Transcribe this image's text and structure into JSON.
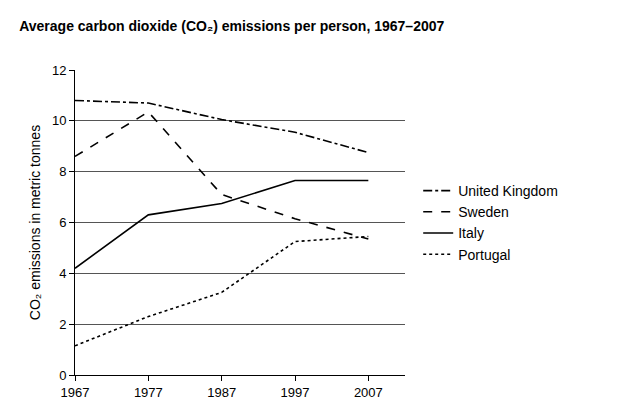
{
  "chart_data": {
    "type": "line",
    "title": "Average carbon dioxide (CO₂) emissions per person, 1967–2007",
    "y_label": "CO₂ emissions in metric tonnes",
    "x": [
      1967,
      1977,
      1987,
      1997,
      2007
    ],
    "series": [
      {
        "name": "United Kingdom",
        "color": "#000000",
        "line_style": "dashdot",
        "values": [
          10.8,
          10.7,
          10.05,
          9.55,
          8.75
        ]
      },
      {
        "name": "Sweden",
        "color": "#000000",
        "line_style": "dash",
        "values": [
          8.6,
          10.35,
          7.1,
          6.15,
          5.35
        ]
      },
      {
        "name": "Italy",
        "color": "#000000",
        "line_style": "solid",
        "values": [
          4.2,
          6.3,
          6.75,
          7.65,
          7.65
        ]
      },
      {
        "name": "Portugal",
        "color": "#000000",
        "line_style": "dot",
        "values": [
          1.15,
          2.3,
          3.25,
          5.25,
          5.45
        ]
      }
    ],
    "xlim": [
      1967,
      2012
    ],
    "xticks": [
      1967,
      1977,
      1987,
      1997,
      2007
    ],
    "ylim": [
      0,
      12
    ],
    "yticks": [
      0,
      2,
      4,
      6,
      8,
      10,
      12
    ],
    "grid": true,
    "legend": "right"
  }
}
